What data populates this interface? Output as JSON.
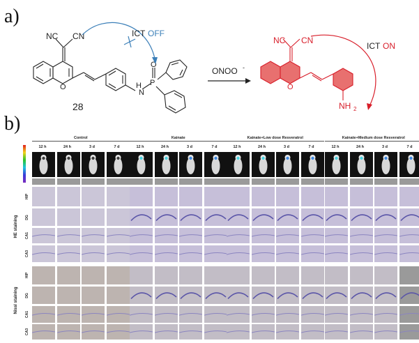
{
  "panel_a": {
    "label": "a)",
    "compound_number": "28",
    "reactant": {
      "nc_left": "NC",
      "cn_right": "CN",
      "ring_o": "O",
      "nh": "H",
      "n": "N",
      "p": "P",
      "o_eq": "O",
      "ict_prefix": "ICT",
      "ict_state": "OFF"
    },
    "reagent": "ONOO",
    "reagent_charge": "-",
    "product": {
      "nc_left": "NC",
      "cn_right": "CN",
      "ring_o": "O",
      "nh2": "NH",
      "nh2_sub": "2",
      "ict_prefix": "ICT",
      "ict_state": "ON"
    },
    "colors": {
      "off_blue": "#3b7fb8",
      "on_red": "#d81e2a",
      "product_fill": "#e8706f"
    }
  },
  "panel_b": {
    "label": "b)",
    "groups": [
      {
        "title": "Control"
      },
      {
        "title": "Kainate"
      },
      {
        "title": "Kainate+Low dose Resveratrol"
      },
      {
        "title": "Kainate+Medium dose Resveratrol"
      }
    ],
    "timepoints": [
      "12 h",
      "24 h",
      "3 d",
      "7 d"
    ],
    "row_labels": {
      "he": [
        "HIP",
        "DG",
        "CA1",
        "CA3"
      ],
      "nissl": [
        "HIP",
        "DG",
        "CA1",
        "CA3"
      ]
    },
    "stain_labels": {
      "he": "HE staining",
      "nissl": "Nissl staining"
    }
  }
}
